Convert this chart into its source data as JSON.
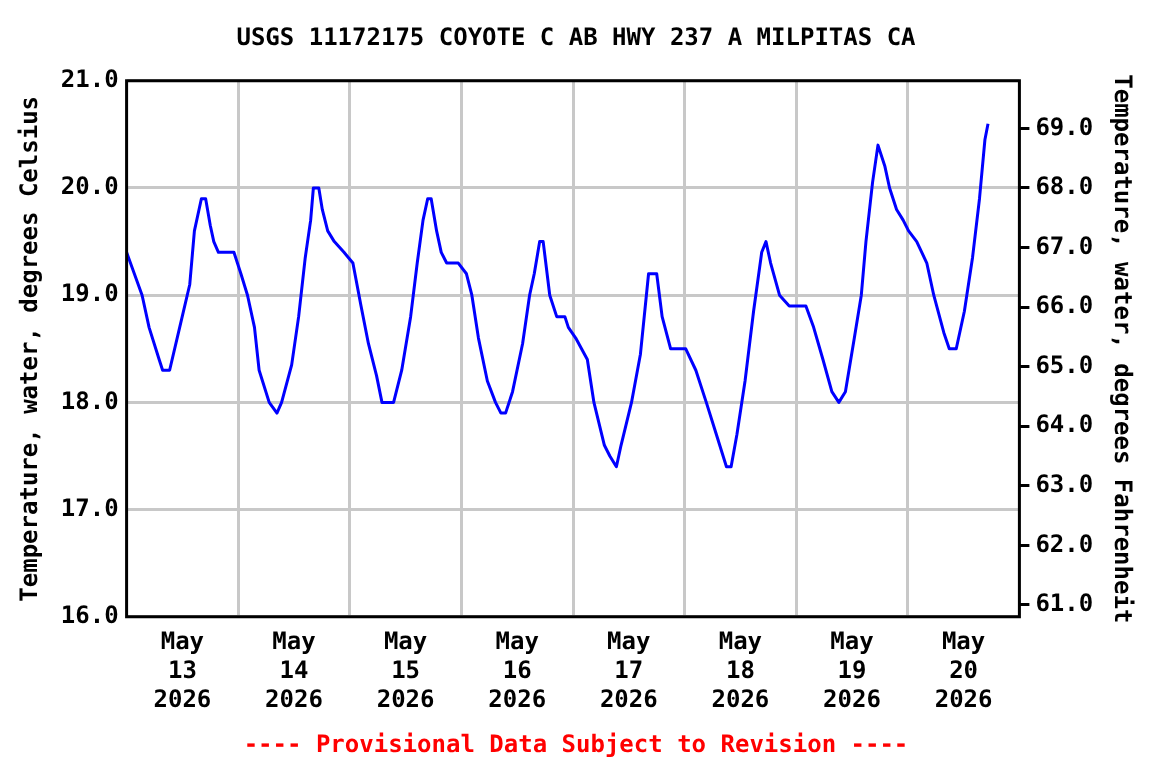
{
  "chart_data": {
    "type": "line",
    "title": "USGS 11172175 COYOTE C AB HWY 237 A MILPITAS CA",
    "ylabel": "Temperature, water, degrees Celsius",
    "y2label": "Temperature, water, degrees Fahrenheit",
    "annotations": [
      "---- Provisional Data Subject to Revision ----"
    ],
    "x": [
      "2026-05-13T00:00",
      "2026-05-13T03:20",
      "2026-05-13T04:50",
      "2026-05-13T07:00",
      "2026-05-13T07:45",
      "2026-05-13T09:15",
      "2026-05-13T11:25",
      "2026-05-13T13:35",
      "2026-05-13T14:35",
      "2026-05-13T16:05",
      "2026-05-13T17:00",
      "2026-05-13T18:00",
      "2026-05-13T18:45",
      "2026-05-13T19:45",
      "2026-05-13T23:05",
      "2026-05-14T00:35",
      "2026-05-14T02:00",
      "2026-05-14T03:30",
      "2026-05-14T04:30",
      "2026-05-14T06:40",
      "2026-05-14T08:20",
      "2026-05-14T09:20",
      "2026-05-14T11:30",
      "2026-05-14T13:00",
      "2026-05-14T14:25",
      "2026-05-14T15:35",
      "2026-05-14T16:10",
      "2026-05-14T17:20",
      "2026-05-14T18:05",
      "2026-05-14T19:15",
      "2026-05-14T20:40",
      "2026-05-14T22:45",
      "2026-05-15T00:40",
      "2026-05-15T02:25",
      "2026-05-15T04:00",
      "2026-05-15T05:45",
      "2026-05-15T06:55",
      "2026-05-15T09:25",
      "2026-05-15T11:10",
      "2026-05-15T13:05",
      "2026-05-15T14:30",
      "2026-05-15T15:45",
      "2026-05-15T16:45",
      "2026-05-15T17:30",
      "2026-05-15T18:40",
      "2026-05-15T19:40",
      "2026-05-15T20:50",
      "2026-05-15T23:20",
      "2026-05-16T01:05",
      "2026-05-16T02:15",
      "2026-05-16T03:40",
      "2026-05-16T05:35",
      "2026-05-16T07:20",
      "2026-05-16T08:30",
      "2026-05-16T09:30",
      "2026-05-16T11:00",
      "2026-05-16T13:10",
      "2026-05-16T14:40",
      "2026-05-16T15:40",
      "2026-05-16T16:50",
      "2026-05-16T17:35",
      "2026-05-16T19:00",
      "2026-05-16T20:30",
      "2026-05-16T22:15",
      "2026-05-16T23:00",
      "2026-05-17T00:35",
      "2026-05-17T03:05",
      "2026-05-17T04:30",
      "2026-05-17T06:45",
      "2026-05-17T07:55",
      "2026-05-17T09:20",
      "2026-05-17T10:20",
      "2026-05-17T12:35",
      "2026-05-17T14:30",
      "2026-05-17T16:15",
      "2026-05-17T18:00",
      "2026-05-17T19:10",
      "2026-05-17T21:00",
      "2026-05-18T00:15",
      "2026-05-18T02:25",
      "2026-05-18T04:40",
      "2026-05-18T06:50",
      "2026-05-18T09:00",
      "2026-05-18T10:00",
      "2026-05-18T11:15",
      "2026-05-18T13:00",
      "2026-05-18T14:50",
      "2026-05-18T16:35",
      "2026-05-18T17:30",
      "2026-05-18T18:30",
      "2026-05-18T20:25",
      "2026-05-18T22:30",
      "2026-05-19T02:05",
      "2026-05-19T03:45",
      "2026-05-19T05:45",
      "2026-05-19T07:40",
      "2026-05-19T09:10",
      "2026-05-19T10:35",
      "2026-05-19T12:30",
      "2026-05-19T14:00",
      "2026-05-19T15:00",
      "2026-05-19T16:25",
      "2026-05-19T17:35",
      "2026-05-19T19:05",
      "2026-05-19T20:05",
      "2026-05-19T21:35",
      "2026-05-19T23:00",
      "2026-05-20T00:10",
      "2026-05-20T01:55",
      "2026-05-20T04:05",
      "2026-05-20T05:35",
      "2026-05-20T07:45",
      "2026-05-20T08:55",
      "2026-05-20T10:25",
      "2026-05-20T12:10",
      "2026-05-20T13:55",
      "2026-05-20T15:25",
      "2026-05-20T16:35",
      "2026-05-20T17:15"
    ],
    "series": [
      {
        "color": "#0000ff",
        "values": [
          19.4,
          19.0,
          18.7,
          18.4,
          18.3,
          18.3,
          18.7,
          19.1,
          19.6,
          19.9,
          19.9,
          19.65,
          19.5,
          19.4,
          19.4,
          19.2,
          19.0,
          18.7,
          18.3,
          18.0,
          17.9,
          18.0,
          18.35,
          18.8,
          19.35,
          19.7,
          20.0,
          20.0,
          19.8,
          19.6,
          19.5,
          19.4,
          19.3,
          18.9,
          18.55,
          18.25,
          18.0,
          18.0,
          18.3,
          18.8,
          19.3,
          19.7,
          19.9,
          19.9,
          19.6,
          19.4,
          19.3,
          19.3,
          19.2,
          19.0,
          18.6,
          18.2,
          18.0,
          17.9,
          17.9,
          18.1,
          18.55,
          19.0,
          19.2,
          19.5,
          19.5,
          19.0,
          18.8,
          18.8,
          18.7,
          18.6,
          18.4,
          18.0,
          17.6,
          17.5,
          17.4,
          17.6,
          18.0,
          18.45,
          19.2,
          19.2,
          18.8,
          18.5,
          18.5,
          18.3,
          18.0,
          17.7,
          17.4,
          17.4,
          17.7,
          18.2,
          18.85,
          19.4,
          19.5,
          19.3,
          19.0,
          18.9,
          18.9,
          18.7,
          18.4,
          18.1,
          18.0,
          18.1,
          18.6,
          19.0,
          19.5,
          20.05,
          20.4,
          20.2,
          20.0,
          19.8,
          19.7,
          19.6,
          19.5,
          19.3,
          19.0,
          18.65,
          18.5,
          18.5,
          18.85,
          19.35,
          19.9,
          20.45,
          20.6
        ]
      }
    ],
    "xlim": [
      "2026-05-13T00:00",
      "2026-05-21T00:00"
    ],
    "xticks": [
      {
        "value": "2026-05-13T12:00",
        "label": "May 13 2026"
      },
      {
        "value": "2026-05-14T00:00",
        "label": null
      },
      {
        "value": "2026-05-14T12:00",
        "label": "May 14 2026"
      },
      {
        "value": "2026-05-15T00:00",
        "label": null
      },
      {
        "value": "2026-05-15T12:00",
        "label": "May 15 2026"
      },
      {
        "value": "2026-05-16T00:00",
        "label": null
      },
      {
        "value": "2026-05-16T12:00",
        "label": "May 16 2026"
      },
      {
        "value": "2026-05-17T00:00",
        "label": null
      },
      {
        "value": "2026-05-17T12:00",
        "label": "May 17 2026"
      },
      {
        "value": "2026-05-18T00:00",
        "label": null
      },
      {
        "value": "2026-05-18T12:00",
        "label": "May 18 2026"
      },
      {
        "value": "2026-05-19T00:00",
        "label": null
      },
      {
        "value": "2026-05-19T12:00",
        "label": "May 19 2026"
      },
      {
        "value": "2026-05-20T00:00",
        "label": null
      },
      {
        "value": "2026-05-20T12:00",
        "label": "May 20 2026"
      }
    ],
    "ylim": [
      16,
      21
    ],
    "yticks": [
      {
        "value": 16,
        "label": "16.0"
      },
      {
        "value": 17,
        "label": "17.0"
      },
      {
        "value": 18,
        "label": "18.0"
      },
      {
        "value": 19,
        "label": "19.0"
      },
      {
        "value": 20,
        "label": "20.0"
      },
      {
        "value": 21,
        "label": "21.0"
      }
    ],
    "y2lim": [
      60.8,
      69.8
    ],
    "y2ticks": [
      {
        "value": 61,
        "label": "61.0"
      },
      {
        "value": 62,
        "label": "62.0"
      },
      {
        "value": 63,
        "label": "63.0"
      },
      {
        "value": 64,
        "label": "64.0"
      },
      {
        "value": 65,
        "label": "65.0"
      },
      {
        "value": 66,
        "label": "66.0"
      },
      {
        "value": 67,
        "label": "67.0"
      },
      {
        "value": 68,
        "label": "68.0"
      },
      {
        "value": 69,
        "label": "69.0"
      }
    ],
    "grid": true,
    "legend": false,
    "marker": "none",
    "line_style": "solid"
  }
}
